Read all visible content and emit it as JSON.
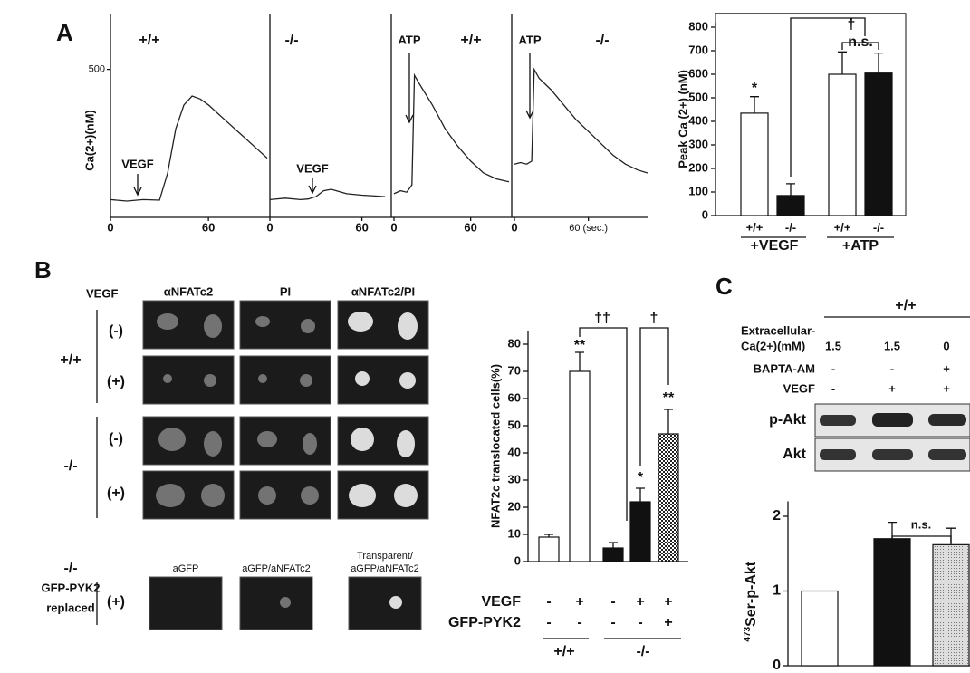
{
  "panels": [
    "A",
    "B",
    "C"
  ],
  "chart_data": [
    {
      "type": "line",
      "title": "+/+",
      "y_label": "Ca(2+)(nM)",
      "annotation": "VEGF",
      "color": "#222222",
      "x": [
        0,
        10,
        20,
        30,
        35,
        40,
        45,
        50,
        55,
        60,
        70,
        80,
        90,
        96
      ],
      "values": [
        60,
        55,
        60,
        58,
        150,
        300,
        380,
        410,
        400,
        380,
        330,
        280,
        230,
        200
      ],
      "xlim": [
        0,
        96
      ],
      "ylim": [
        0,
        560
      ],
      "xticks": [
        0,
        60
      ],
      "yticks": [
        500
      ]
    },
    {
      "type": "line",
      "title": "-/-",
      "annotation": "VEGF",
      "color": "#222222",
      "x": [
        0,
        10,
        20,
        25,
        30,
        35,
        40,
        50,
        60,
        70,
        75
      ],
      "values": [
        60,
        65,
        60,
        62,
        70,
        90,
        95,
        80,
        75,
        72,
        70
      ],
      "xlim": [
        0,
        75
      ],
      "ylim": [
        0,
        560
      ],
      "xticks": [
        0,
        60
      ]
    },
    {
      "type": "line",
      "title": "+/+",
      "annotation": "ATP",
      "color": "#222222",
      "x": [
        0,
        5,
        10,
        14,
        16,
        20,
        30,
        40,
        50,
        60,
        70,
        80,
        90
      ],
      "values": [
        80,
        90,
        85,
        110,
        480,
        450,
        380,
        300,
        240,
        190,
        150,
        130,
        120
      ],
      "xlim": [
        0,
        90
      ],
      "ylim": [
        0,
        560
      ],
      "xticks": [
        0,
        60
      ]
    },
    {
      "type": "line",
      "title": "-/-",
      "annotation": "ATP",
      "color": "#222222",
      "x": [
        0,
        5,
        10,
        14,
        16,
        20,
        30,
        40,
        50,
        60,
        70,
        80,
        90,
        100,
        108
      ],
      "values": [
        180,
        185,
        180,
        190,
        500,
        470,
        430,
        380,
        330,
        290,
        250,
        210,
        180,
        160,
        150
      ],
      "xlim": [
        0,
        108
      ],
      "ylim": [
        0,
        560
      ],
      "xticks": [
        0,
        {
          "value": 60,
          "label": "60 (sec.)"
        }
      ]
    },
    {
      "type": "bar",
      "y_label": "Peak Ca (2+) (nM)",
      "categories": [
        "+/+",
        "-/-",
        "+/+",
        "-/-"
      ],
      "groups": [
        "+VEGF",
        "+ATP"
      ],
      "values": [
        435,
        85,
        600,
        605
      ],
      "errors": [
        70,
        50,
        95,
        85
      ],
      "fills": [
        "white",
        "black",
        "white",
        "black"
      ],
      "ylim": [
        0,
        820
      ],
      "yticks": [
        0,
        100,
        200,
        300,
        400,
        500,
        600,
        700,
        800
      ],
      "annotations": [
        "*",
        "†",
        "n.s."
      ]
    },
    {
      "type": "bar",
      "y_label": "NFAT2c translocated cells(%)",
      "groups": [
        "+/+",
        "-/-"
      ],
      "rows": [
        {
          "label": "VEGF",
          "cells": [
            "-",
            "+",
            "-",
            "+",
            "+"
          ]
        },
        {
          "label": "GFP-PYK2",
          "cells": [
            "-",
            "-",
            "-",
            "-",
            "+"
          ]
        }
      ],
      "values": [
        9,
        70,
        5,
        22,
        47
      ],
      "errors": [
        1,
        7,
        2,
        5,
        9
      ],
      "fills": [
        "white",
        "white",
        "black",
        "black",
        "checkered"
      ],
      "ylim": [
        0,
        85
      ],
      "yticks": [
        0,
        10,
        20,
        30,
        40,
        50,
        60,
        70,
        80
      ],
      "annotations": [
        "**",
        "††",
        "†",
        "*",
        "**"
      ]
    },
    {
      "type": "bar",
      "y_label_prefix": "473",
      "y_label": "Ser-p-Akt",
      "values": [
        1,
        1.7,
        1.62
      ],
      "errors": [
        null,
        0.22,
        0.22
      ],
      "fills": [
        "white",
        "black",
        "dotted"
      ],
      "ylim": [
        0,
        2.2
      ],
      "yticks": [
        0,
        1,
        2
      ],
      "annotations": [
        "n.s."
      ]
    }
  ],
  "micrographs": {
    "treatment_label": "VEGF",
    "columns": [
      "αNFATc2",
      "PI",
      "αNFATc2/PI"
    ],
    "rows": [
      "(-)",
      "(+)",
      "(-)",
      "(+)"
    ],
    "genotypes": [
      "+/+",
      "-/-"
    ],
    "rescue": {
      "genotype": "-/-",
      "label_lines": [
        "GFP-PYK2",
        "replaced"
      ],
      "treatment": "(+)",
      "captions": [
        [
          "aGFP"
        ],
        [
          "aGFP/aNFATc2"
        ],
        [
          "Transparent/",
          "aGFP/aNFATc2"
        ]
      ]
    }
  },
  "blot": {
    "genotype": "+/+",
    "rows": [
      {
        "label_lines": [
          "Extracellular-",
          "Ca(2+)(mM)"
        ],
        "cells": [
          1.5,
          1.5,
          0
        ]
      },
      {
        "label_lines": [
          "BAPTA-AM"
        ],
        "cells": [
          "-",
          "-",
          "+"
        ]
      },
      {
        "label_lines": [
          "VEGF"
        ],
        "cells": [
          "-",
          "+",
          "+"
        ]
      }
    ],
    "bands": [
      "p-Akt",
      "Akt"
    ]
  }
}
